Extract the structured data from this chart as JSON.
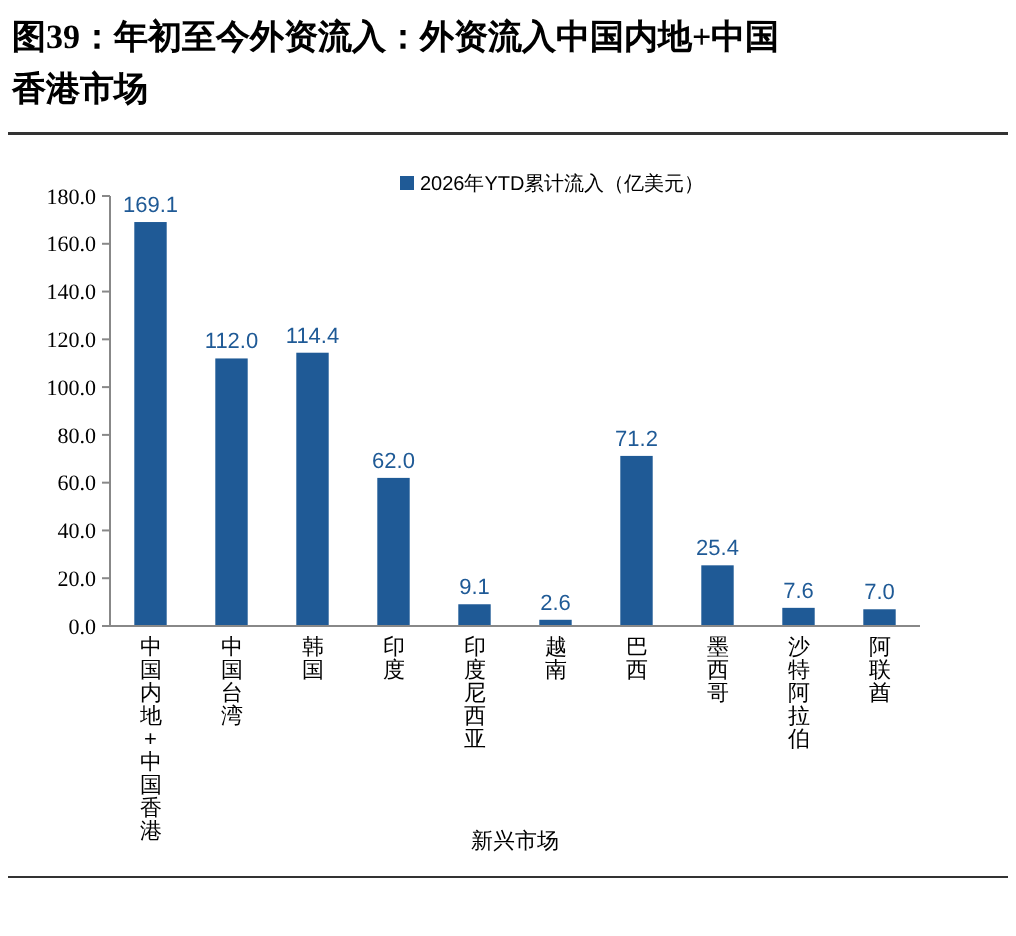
{
  "chart_data": {
    "type": "bar",
    "title": "图39：年初至今外资流入：外资流入中国内地+中国香港市场",
    "xlabel": "新兴市场",
    "categories": [
      "中国内地+中国香港",
      "中国台湾",
      "韩国",
      "印度",
      "印度尼西亚",
      "越南",
      "巴西",
      "墨西哥",
      "沙特阿拉伯",
      "阿联酋"
    ],
    "series": [
      {
        "name": "2026年YTD累计流入（亿美元）",
        "color": "#1f5a96",
        "values": [
          169.1,
          112.0,
          114.4,
          62.0,
          9.1,
          2.6,
          71.2,
          25.4,
          7.6,
          7.0
        ]
      }
    ],
    "value_labels": [
      "169.1",
      "112.0",
      "114.4",
      "62.0",
      "9.1",
      "2.6",
      "71.2",
      "25.4",
      "7.6",
      "7.0"
    ],
    "ylim": [
      0,
      180
    ],
    "yticks": [
      {
        "value": 0,
        "label": "0.0"
      },
      {
        "value": 20,
        "label": "20.0"
      },
      {
        "value": 40,
        "label": "40.0"
      },
      {
        "value": 60,
        "label": "60.0"
      },
      {
        "value": 80,
        "label": "80.0"
      },
      {
        "value": 100,
        "label": "100.0"
      },
      {
        "value": 120,
        "label": "120.0"
      },
      {
        "value": 140,
        "label": "140.0"
      },
      {
        "value": 160,
        "label": "160.0"
      },
      {
        "value": 180,
        "label": "180.0"
      }
    ],
    "grid": false,
    "legend": "top"
  }
}
